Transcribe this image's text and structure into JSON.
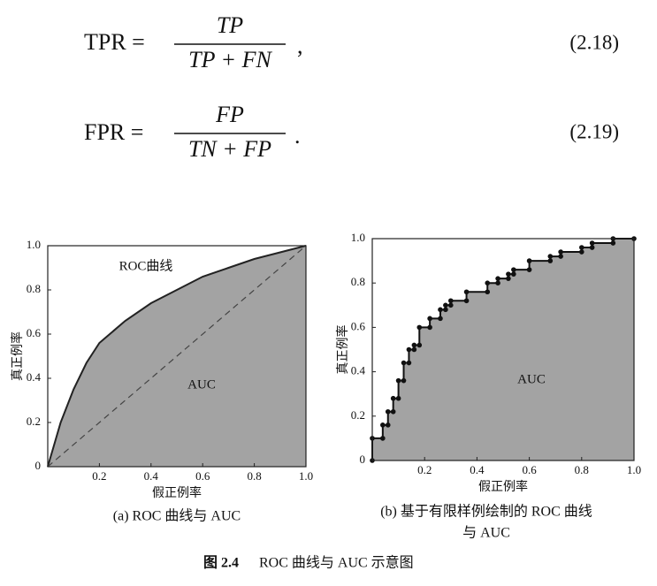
{
  "equations": [
    {
      "lhs": "TPR =",
      "numerator": "TP",
      "denominator": "TP + FN",
      "punct": ",",
      "number": "(2.18)"
    },
    {
      "lhs": "FPR =",
      "numerator": "FP",
      "denominator": "TN + FP",
      "punct": ".",
      "number": "(2.19)"
    }
  ],
  "chart_data": [
    {
      "type": "line",
      "xlabel": "假正例率",
      "ylabel": "真正例率",
      "xlim": [
        0,
        1
      ],
      "ylim": [
        0,
        1
      ],
      "xticks": [
        0.2,
        0.4,
        0.6,
        0.8,
        {
          "value": 1,
          "label": "1.0"
        }
      ],
      "yticks": [
        0,
        0.2,
        0.4,
        0.6,
        0.8,
        {
          "value": 1,
          "label": "1.0"
        }
      ],
      "area_color": "#a3a3a3",
      "series": [
        {
          "x": [
            0,
            0.05,
            0.1,
            0.15,
            0.2,
            0.3,
            0.4,
            0.5,
            0.6,
            0.7,
            0.8,
            0.9,
            1.0
          ],
          "values": [
            0,
            0.2,
            0.35,
            0.47,
            0.56,
            0.66,
            0.74,
            0.8,
            0.86,
            0.9,
            0.94,
            0.97,
            1.0
          ],
          "color": "#222222",
          "style": "solid",
          "area": true
        },
        {
          "x": [
            0,
            1
          ],
          "values": [
            0,
            1
          ],
          "color": "#444444",
          "style": "dashed"
        }
      ],
      "annotations": [
        "ROC曲线",
        "AUC"
      ],
      "caption": [
        "(a) ROC 曲线与 AUC"
      ]
    },
    {
      "type": "step",
      "xlabel": "假正例率",
      "ylabel": "真正例率",
      "xlim": [
        0,
        1
      ],
      "ylim": [
        0,
        1
      ],
      "xticks": [
        0.2,
        0.4,
        0.6,
        0.8,
        {
          "value": 1,
          "label": "1.0"
        }
      ],
      "yticks": [
        0,
        0.2,
        0.4,
        0.6,
        0.8,
        {
          "value": 1,
          "label": "1.0"
        }
      ],
      "area_color": "#a3a3a3",
      "series": [
        {
          "x": [
            0,
            0,
            0.04,
            0.04,
            0.06,
            0.06,
            0.08,
            0.08,
            0.1,
            0.1,
            0.12,
            0.12,
            0.14,
            0.14,
            0.16,
            0.16,
            0.18,
            0.18,
            0.22,
            0.22,
            0.26,
            0.26,
            0.28,
            0.28,
            0.3,
            0.3,
            0.36,
            0.36,
            0.44,
            0.44,
            0.48,
            0.48,
            0.52,
            0.52,
            0.54,
            0.54,
            0.6,
            0.6,
            0.68,
            0.68,
            0.72,
            0.72,
            0.8,
            0.8,
            0.84,
            0.84,
            0.92,
            0.92,
            1.0
          ],
          "values": [
            0,
            0.1,
            0.1,
            0.16,
            0.16,
            0.22,
            0.22,
            0.28,
            0.28,
            0.36,
            0.36,
            0.44,
            0.44,
            0.5,
            0.5,
            0.52,
            0.52,
            0.6,
            0.6,
            0.64,
            0.64,
            0.68,
            0.68,
            0.7,
            0.7,
            0.72,
            0.72,
            0.76,
            0.76,
            0.8,
            0.8,
            0.82,
            0.82,
            0.84,
            0.84,
            0.86,
            0.86,
            0.9,
            0.9,
            0.92,
            0.92,
            0.94,
            0.94,
            0.96,
            0.96,
            0.98,
            0.98,
            1.0,
            1.0
          ],
          "color": "#111111",
          "style": "solid",
          "area": true,
          "markers": true
        }
      ],
      "annotations": [
        "AUC"
      ],
      "caption": [
        "(b) 基于有限样例绘制的 ROC 曲线",
        "与 AUC"
      ]
    }
  ],
  "figure_caption": {
    "label": "图 2.4",
    "text": "ROC 曲线与 AUC 示意图"
  }
}
